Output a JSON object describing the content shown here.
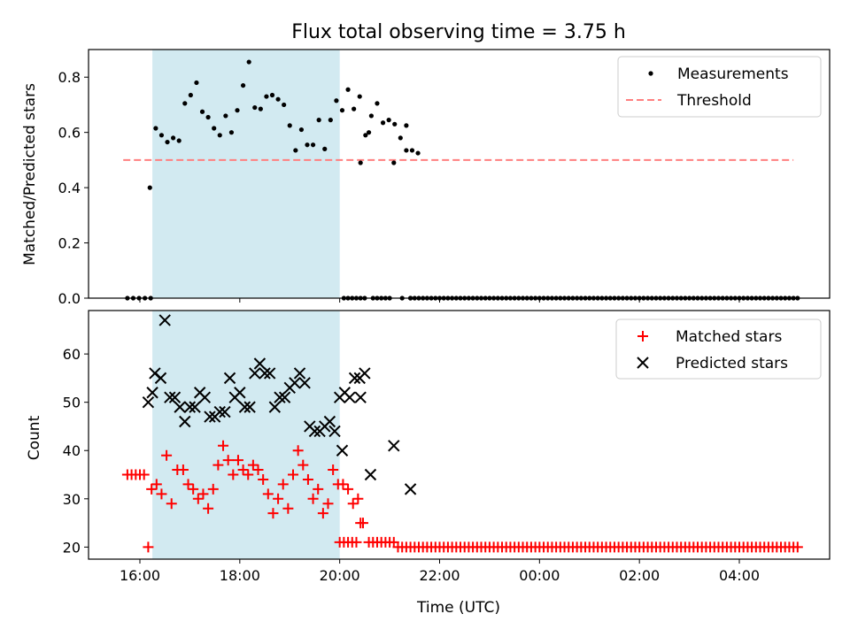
{
  "chart_data": [
    {
      "type": "scatter",
      "title": "Flux total observing time = 3.75 h",
      "ylabel": "Matched/Predicted stars",
      "ylim": [
        0.0,
        0.9
      ],
      "yticks": [
        "0.0",
        "0.2",
        "0.4",
        "0.6",
        "0.8"
      ],
      "shaded_region": {
        "x0": "16:15",
        "x1": "20:00",
        "color": "#add8e6"
      },
      "legend_position": "upper right",
      "series": [
        {
          "name": "Measurements",
          "marker": "dot",
          "color": "#000000",
          "points": [
            [
              "15:45",
              0
            ],
            [
              "15:52",
              0
            ],
            [
              "15:59",
              0
            ],
            [
              "16:06",
              0
            ],
            [
              "16:13",
              0
            ],
            [
              "16:12",
              0.4
            ],
            [
              "16:19",
              0.615
            ],
            [
              "16:26",
              0.59
            ],
            [
              "16:33",
              0.565
            ],
            [
              "16:40",
              0.58
            ],
            [
              "16:47",
              0.57
            ],
            [
              "16:54",
              0.705
            ],
            [
              "17:01",
              0.735
            ],
            [
              "17:08",
              0.78
            ],
            [
              "17:15",
              0.675
            ],
            [
              "17:22",
              0.655
            ],
            [
              "17:29",
              0.615
            ],
            [
              "17:36",
              0.59
            ],
            [
              "17:43",
              0.66
            ],
            [
              "17:50",
              0.6
            ],
            [
              "17:57",
              0.68
            ],
            [
              "18:04",
              0.77
            ],
            [
              "18:11",
              0.855
            ],
            [
              "18:18",
              0.69
            ],
            [
              "18:25",
              0.685
            ],
            [
              "18:32",
              0.73
            ],
            [
              "18:39",
              0.735
            ],
            [
              "18:46",
              0.72
            ],
            [
              "18:53",
              0.7
            ],
            [
              "19:00",
              0.625
            ],
            [
              "19:07",
              0.535
            ],
            [
              "19:14",
              0.61
            ],
            [
              "19:21",
              0.555
            ],
            [
              "19:28",
              0.555
            ],
            [
              "19:35",
              0.645
            ],
            [
              "19:42",
              0.54
            ],
            [
              "19:49",
              0.645
            ],
            [
              "19:56",
              0.715
            ],
            [
              "20:03",
              0.68
            ],
            [
              "20:10",
              0.755
            ],
            [
              "20:17",
              0.685
            ],
            [
              "20:24",
              0.73
            ],
            [
              "20:31",
              0.59
            ],
            [
              "20:38",
              0.66
            ],
            [
              "20:45",
              0.705
            ],
            [
              "20:52",
              0.635
            ],
            [
              "20:59",
              0.645
            ],
            [
              "21:06",
              0.63
            ],
            [
              "21:13",
              0.58
            ],
            [
              "21:20",
              0.535
            ],
            [
              "21:27",
              0.535
            ],
            [
              "21:34",
              0.525
            ],
            [
              "20:05",
              0
            ],
            [
              "20:10",
              0
            ],
            [
              "20:15",
              0
            ],
            [
              "20:20",
              0
            ],
            [
              "20:25",
              0
            ],
            [
              "20:30",
              0
            ],
            [
              "20:25",
              0.49
            ],
            [
              "20:35",
              0.6
            ],
            [
              "20:40",
              0
            ],
            [
              "20:45",
              0
            ],
            [
              "20:50",
              0
            ],
            [
              "20:55",
              0
            ],
            [
              "21:00",
              0
            ],
            [
              "21:05",
              0.49
            ],
            [
              "21:15",
              0
            ],
            [
              "21:20",
              0.625
            ],
            [
              "21:25",
              0
            ]
          ],
          "tail_zero_from": "21:25",
          "tail_zero_to": "05:10"
        },
        {
          "name": "Threshold",
          "style": "dashed",
          "color": "#ff7f7f",
          "value": 0.5,
          "x_start": "15:40",
          "x_end": "05:05"
        }
      ]
    },
    {
      "type": "scatter",
      "xlabel": "Time (UTC)",
      "ylabel": "Count",
      "ylim": [
        17.5,
        69
      ],
      "yticks": [
        "20",
        "30",
        "40",
        "50",
        "60"
      ],
      "xticks": [
        "16:00",
        "18:00",
        "20:00",
        "22:00",
        "00:00",
        "02:00",
        "04:00"
      ],
      "shaded_region": {
        "x0": "16:15",
        "x1": "20:00",
        "color": "#add8e6"
      },
      "legend_position": "upper right",
      "series": [
        {
          "name": "Matched stars",
          "marker": "plus",
          "color": "#ff0000",
          "points": [
            [
              "15:45",
              35
            ],
            [
              "15:50",
              35
            ],
            [
              "15:55",
              35
            ],
            [
              "16:00",
              35
            ],
            [
              "16:05",
              35
            ],
            [
              "16:10",
              20
            ],
            [
              "16:14",
              32
            ],
            [
              "16:20",
              33
            ],
            [
              "16:26",
              31
            ],
            [
              "16:32",
              39
            ],
            [
              "16:38",
              29
            ],
            [
              "16:45",
              36
            ],
            [
              "16:52",
              36
            ],
            [
              "16:58",
              33
            ],
            [
              "17:04",
              32
            ],
            [
              "17:10",
              30
            ],
            [
              "17:16",
              31
            ],
            [
              "17:22",
              28
            ],
            [
              "17:28",
              32
            ],
            [
              "17:34",
              37
            ],
            [
              "17:40",
              41
            ],
            [
              "17:46",
              38
            ],
            [
              "17:52",
              35
            ],
            [
              "17:58",
              38
            ],
            [
              "18:04",
              36
            ],
            [
              "18:10",
              35
            ],
            [
              "18:16",
              37
            ],
            [
              "18:22",
              36
            ],
            [
              "18:28",
              34
            ],
            [
              "18:34",
              31
            ],
            [
              "18:40",
              27
            ],
            [
              "18:46",
              30
            ],
            [
              "18:52",
              33
            ],
            [
              "18:58",
              28
            ],
            [
              "19:04",
              35
            ],
            [
              "19:10",
              40
            ],
            [
              "19:16",
              37
            ],
            [
              "19:22",
              34
            ],
            [
              "19:28",
              30
            ],
            [
              "19:34",
              32
            ],
            [
              "19:40",
              27
            ],
            [
              "19:46",
              29
            ],
            [
              "19:52",
              36
            ],
            [
              "19:58",
              33
            ],
            [
              "20:04",
              33
            ],
            [
              "20:10",
              32
            ],
            [
              "20:16",
              29
            ],
            [
              "20:22",
              30
            ],
            [
              "20:00",
              21
            ],
            [
              "20:05",
              21
            ],
            [
              "20:10",
              21
            ],
            [
              "20:15",
              21
            ],
            [
              "20:20",
              21
            ],
            [
              "20:25",
              25
            ],
            [
              "20:28",
              25
            ],
            [
              "20:35",
              21
            ],
            [
              "20:40",
              21
            ],
            [
              "20:45",
              21
            ],
            [
              "20:50",
              21
            ],
            [
              "20:55",
              21
            ],
            [
              "21:00",
              21
            ],
            [
              "21:05",
              21
            ],
            [
              "21:10",
              20
            ],
            [
              "21:15",
              20
            ],
            [
              "21:20",
              20
            ],
            [
              "21:25",
              20
            ]
          ],
          "tail_value": 20,
          "tail_from": "21:30",
          "tail_to": "05:10"
        },
        {
          "name": "Predicted stars",
          "marker": "x",
          "color": "#000000",
          "points": [
            [
              "16:10",
              50
            ],
            [
              "16:15",
              52
            ],
            [
              "16:18",
              56
            ],
            [
              "16:25",
              55
            ],
            [
              "16:30",
              67
            ],
            [
              "16:36",
              51
            ],
            [
              "16:42",
              51
            ],
            [
              "16:48",
              49
            ],
            [
              "16:54",
              46
            ],
            [
              "17:00",
              49
            ],
            [
              "17:06",
              49
            ],
            [
              "17:12",
              52
            ],
            [
              "17:18",
              51
            ],
            [
              "17:24",
              47
            ],
            [
              "17:30",
              47
            ],
            [
              "17:36",
              48
            ],
            [
              "17:42",
              48
            ],
            [
              "17:48",
              55
            ],
            [
              "17:54",
              51
            ],
            [
              "18:00",
              52
            ],
            [
              "18:06",
              49
            ],
            [
              "18:12",
              49
            ],
            [
              "18:18",
              56
            ],
            [
              "18:24",
              58
            ],
            [
              "18:30",
              56
            ],
            [
              "18:36",
              56
            ],
            [
              "18:42",
              49
            ],
            [
              "18:48",
              51
            ],
            [
              "18:54",
              51
            ],
            [
              "19:00",
              53
            ],
            [
              "19:06",
              54
            ],
            [
              "19:12",
              56
            ],
            [
              "19:18",
              54
            ],
            [
              "19:24",
              45
            ],
            [
              "19:30",
              44
            ],
            [
              "19:36",
              44
            ],
            [
              "19:42",
              45
            ],
            [
              "19:48",
              46
            ],
            [
              "19:54",
              44
            ],
            [
              "20:00",
              51
            ],
            [
              "20:06",
              52
            ],
            [
              "20:12",
              51
            ],
            [
              "20:18",
              55
            ],
            [
              "20:24",
              55
            ],
            [
              "20:30",
              56
            ],
            [
              "20:03",
              40
            ],
            [
              "20:25",
              51
            ],
            [
              "20:37",
              35
            ],
            [
              "21:05",
              41
            ],
            [
              "21:25",
              32
            ]
          ]
        }
      ]
    }
  ]
}
